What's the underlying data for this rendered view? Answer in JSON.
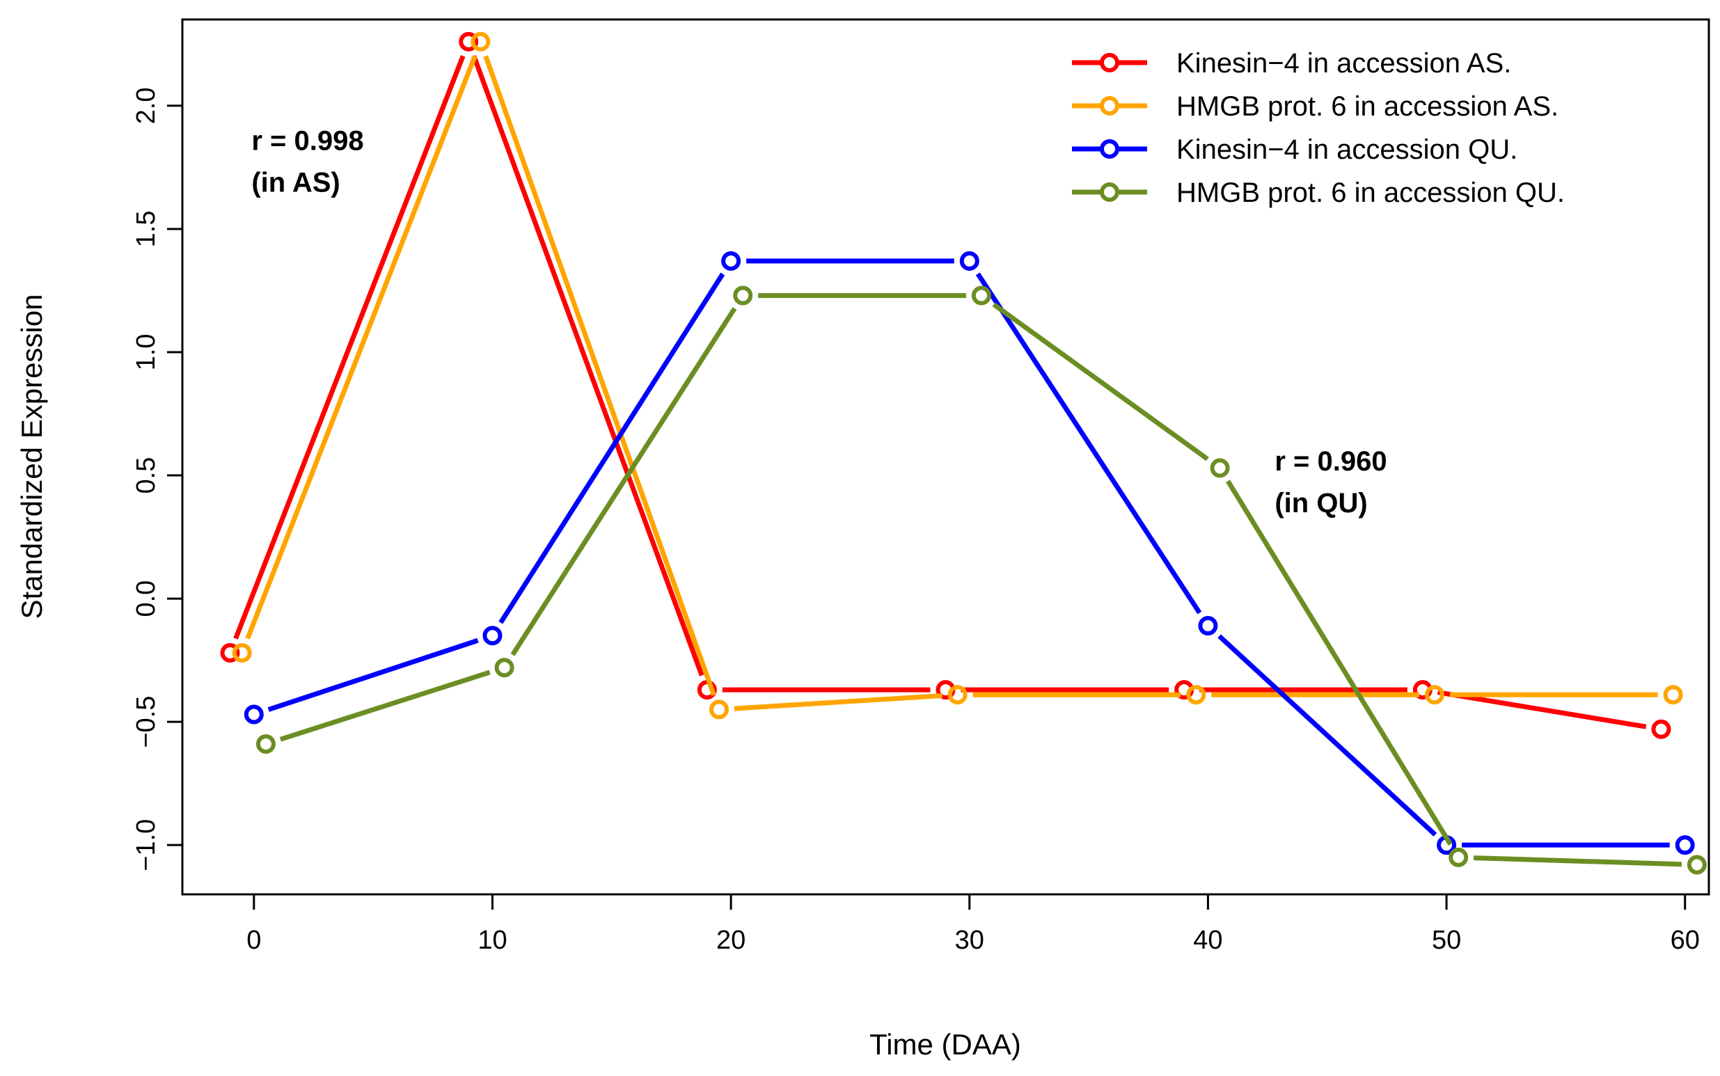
{
  "chart_data": {
    "type": "line",
    "xlabel": "Time (DAA)",
    "ylabel": "Standardized Expression",
    "xlim": [
      -3,
      61
    ],
    "ylim": [
      -1.2,
      2.35
    ],
    "xticks": [
      0,
      10,
      20,
      30,
      40,
      50,
      60
    ],
    "yticks": [
      -1.0,
      -0.5,
      0.0,
      0.5,
      1.0,
      1.5,
      2.0
    ],
    "ytick_labels": [
      "−1.0",
      "−0.5",
      "0.0",
      "0.5",
      "1.0",
      "1.5",
      "2.0"
    ],
    "grid": false,
    "legend_position": "top-right",
    "series": [
      {
        "name": "Kinesin−4 in accession AS.",
        "color": "#ff0000",
        "x": [
          -1,
          9,
          19,
          29,
          39,
          49,
          59
        ],
        "y": [
          -0.22,
          2.26,
          -0.37,
          -0.37,
          -0.37,
          -0.37,
          -0.53
        ]
      },
      {
        "name": "HMGB prot. 6 in accession  AS.",
        "color": "#ffa500",
        "x": [
          -0.5,
          9.5,
          19.5,
          29.5,
          39.5,
          49.5,
          59.5
        ],
        "y": [
          -0.22,
          2.26,
          -0.45,
          -0.39,
          -0.39,
          -0.39,
          -0.39
        ]
      },
      {
        "name": "Kinesin−4 in accession  QU.",
        "color": "#0000ff",
        "x": [
          0,
          10,
          20,
          30,
          40,
          50,
          60
        ],
        "y": [
          -0.47,
          -0.15,
          1.37,
          1.37,
          -0.11,
          -1.0,
          -1.0
        ]
      },
      {
        "name": "HMGB prot. 6 in accession  QU.",
        "color": "#6b8e23",
        "x": [
          0.5,
          10.5,
          20.5,
          30.5,
          40.5,
          50.5,
          60.5
        ],
        "y": [
          -0.59,
          -0.28,
          1.23,
          1.23,
          0.53,
          -1.05,
          -1.08
        ]
      }
    ],
    "annotations": [
      {
        "lines": [
          "r = 0.998",
          "(in AS)"
        ],
        "x": -0.1,
        "y": 1.82
      },
      {
        "lines": [
          "r = 0.960",
          "(in QU)"
        ],
        "x": 42.8,
        "y": 0.52
      }
    ]
  }
}
